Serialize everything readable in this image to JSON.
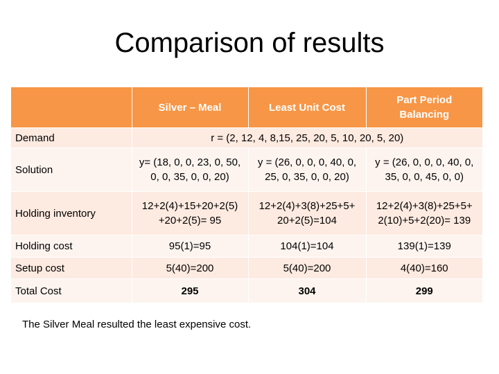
{
  "title": "Comparison of results",
  "header": {
    "corner": "",
    "col1": "Silver – Meal",
    "col2": "Least Unit Cost",
    "col3": "Part Period Balancing"
  },
  "rows": {
    "demand": {
      "label": "Demand",
      "value": "r = (2, 12, 4, 8,15, 25, 20, 5, 10, 20, 5, 20)"
    },
    "solution": {
      "label": "Solution",
      "c1": "y= (18, 0, 0, 23, 0, 50, 0, 0, 35, 0, 0, 20)",
      "c2": "y = (26, 0, 0, 0, 40, 0, 25, 0, 35, 0, 0, 20)",
      "c3": "y = (26, 0, 0, 0, 40, 0, 35, 0, 0, 45, 0, 0)"
    },
    "holding_inventory": {
      "label": "Holding inventory",
      "c1": "12+2(4)+15+20+2(5) +20+2(5)= 95",
      "c2": "12+2(4)+3(8)+25+5+ 20+2(5)=104",
      "c3": "12+2(4)+3(8)+25+5+ 2(10)+5+2(20)= 139"
    },
    "holding_cost": {
      "label": "Holding cost",
      "c1": "95(1)=95",
      "c2": "104(1)=104",
      "c3": "139(1)=139"
    },
    "setup_cost": {
      "label": "Setup cost",
      "c1": "5(40)=200",
      "c2": "5(40)=200",
      "c3": "4(40)=160"
    },
    "total_cost": {
      "label": "Total Cost",
      "c1": "295",
      "c2": "304",
      "c3": "299"
    }
  },
  "note": "The Silver Meal resulted the least expensive cost.",
  "colors": {
    "header": "#f79646",
    "row_light": "#fdeae0",
    "row_white": "#fdf4ef"
  }
}
